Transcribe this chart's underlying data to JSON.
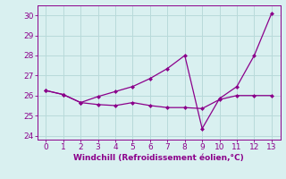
{
  "xlabel": "Windchill (Refroidissement éolien,°C)",
  "line1_x": [
    0,
    1,
    2,
    3,
    4,
    5,
    6,
    7,
    8,
    9,
    10,
    11,
    12,
    13
  ],
  "line1_y": [
    26.25,
    26.05,
    25.65,
    25.55,
    25.5,
    25.65,
    25.5,
    25.4,
    25.4,
    25.35,
    25.8,
    26.0,
    26.0,
    26.0
  ],
  "line2_x": [
    0,
    1,
    2,
    3,
    4,
    5,
    6,
    7,
    8,
    9,
    10,
    11,
    12,
    13
  ],
  "line2_y": [
    26.25,
    26.05,
    25.65,
    25.95,
    26.2,
    26.45,
    26.85,
    27.35,
    28.0,
    24.35,
    25.85,
    26.45,
    28.0,
    30.1
  ],
  "line_color": "#8b008b",
  "background_color": "#d9f0f0",
  "grid_color": "#b8dada",
  "ylim": [
    23.8,
    30.5
  ],
  "xlim": [
    -0.5,
    13.5
  ],
  "yticks": [
    24,
    25,
    26,
    27,
    28,
    29,
    30
  ],
  "xticks": [
    0,
    1,
    2,
    3,
    4,
    5,
    6,
    7,
    8,
    9,
    10,
    11,
    12,
    13
  ],
  "tick_color": "#8b008b",
  "label_color": "#8b008b",
  "marker": "D",
  "markersize": 2.5,
  "tick_fontsize": 6.5,
  "xlabel_fontsize": 6.5
}
